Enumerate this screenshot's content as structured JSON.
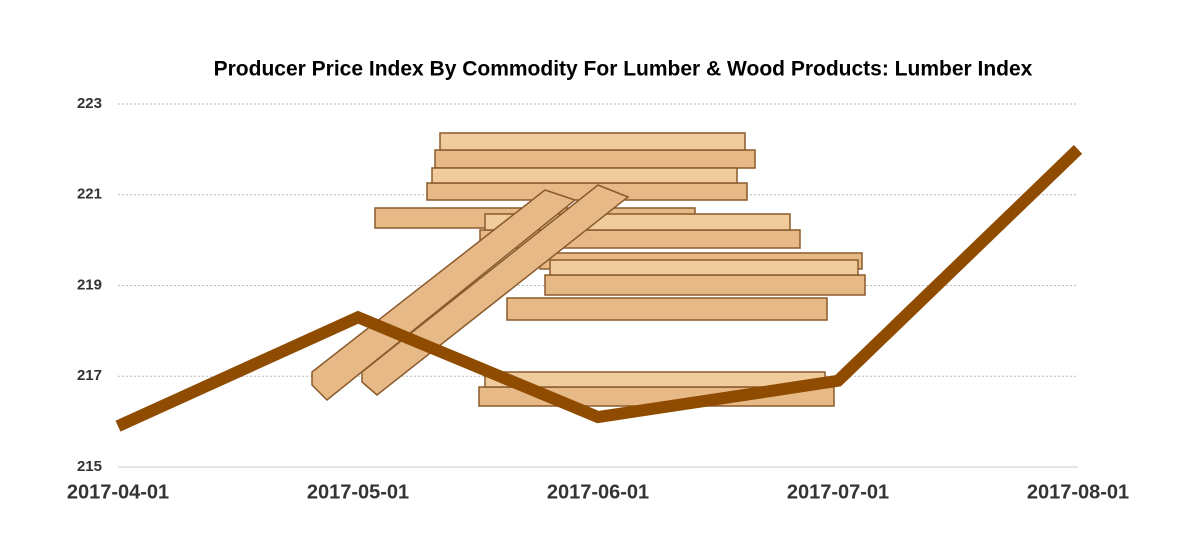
{
  "chart_data": {
    "type": "line",
    "title": "Producer Price Index By Commodity For Lumber & Wood Products: Lumber Index",
    "categories": [
      "2017-04-01",
      "2017-05-01",
      "2017-06-01",
      "2017-07-01",
      "2017-08-01"
    ],
    "series": [
      {
        "name": "Lumber Index",
        "color": "#8f4c00",
        "values": [
          215.9,
          218.3,
          216.1,
          216.9,
          222.0
        ]
      }
    ],
    "ylim": [
      215,
      223
    ],
    "yticks": [
      215,
      217,
      219,
      221,
      223
    ],
    "grid": true
  }
}
